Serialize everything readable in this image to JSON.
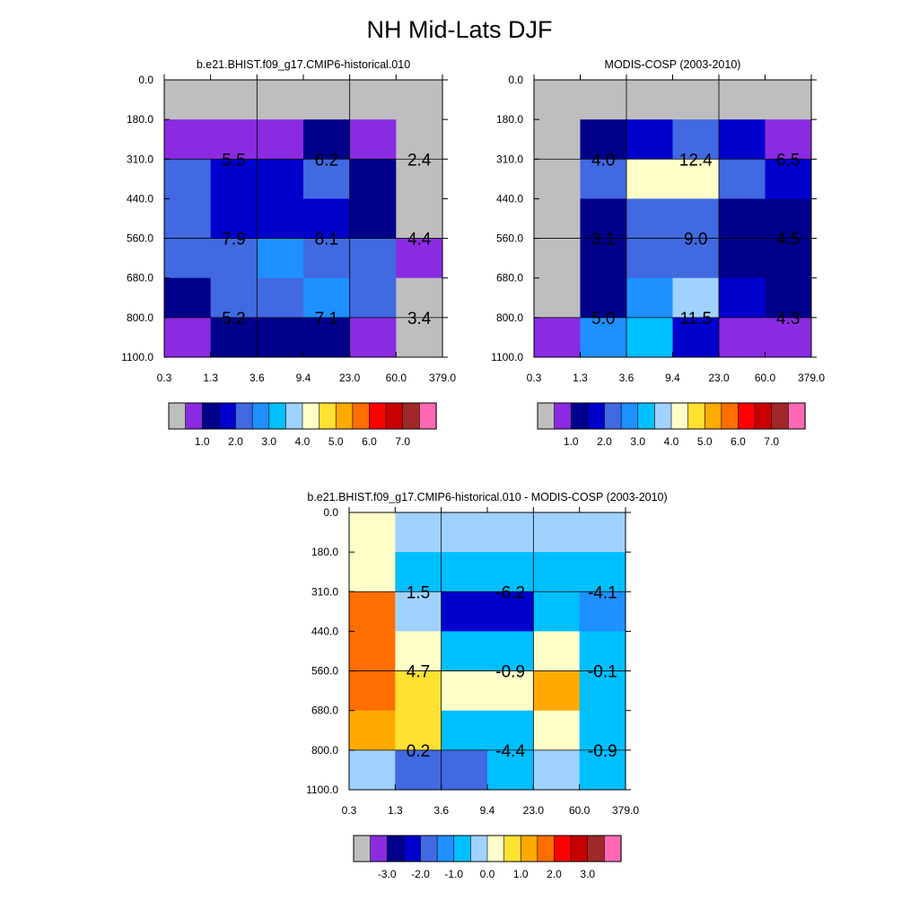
{
  "title": "NH Mid-Lats DJF",
  "colors": {
    "missing": "#bebebe",
    "palette": [
      "#bebebe",
      "#8a2be2",
      "#00008b",
      "#0000cd",
      "#4169e1",
      "#1e90ff",
      "#00bfff",
      "#a0d2ff",
      "#ffffc8",
      "#ffe132",
      "#ffaa00",
      "#ff6e00",
      "#ff0000",
      "#c80000",
      "#a02828",
      "#ff69b4"
    ]
  },
  "chart_data": [
    {
      "type": "heatmap",
      "name": "model",
      "title": "b.e21.BHIST.f09_g17.CMIP6-historical.010",
      "x_ticks": [
        "0.3",
        "1.3",
        "3.6",
        "9.4",
        "23.0",
        "60.0",
        "379.0"
      ],
      "y_ticks": [
        "0.0",
        "180.0",
        "310.0",
        "440.0",
        "560.0",
        "680.0",
        "800.0",
        "1100.0"
      ],
      "cells": [
        [
          0,
          0,
          0,
          0,
          0,
          0
        ],
        [
          1,
          1,
          1,
          2,
          1,
          0
        ],
        [
          4,
          3,
          3,
          4,
          2,
          0
        ],
        [
          4,
          3,
          3,
          3,
          2,
          0
        ],
        [
          4,
          4,
          5,
          4,
          4,
          1
        ],
        [
          2,
          4,
          4,
          5,
          4,
          0
        ],
        [
          1,
          2,
          2,
          2,
          1,
          0
        ]
      ],
      "values": [
        {
          "text": "5.5",
          "col": 0.5,
          "row": 1.5
        },
        {
          "text": "6.2",
          "col": 2.5,
          "row": 1.5
        },
        {
          "text": "2.4",
          "col": 4.5,
          "row": 1.5
        },
        {
          "text": "7.9",
          "col": 0.5,
          "row": 3.5
        },
        {
          "text": "8.1",
          "col": 2.5,
          "row": 3.5
        },
        {
          "text": "4.4",
          "col": 4.5,
          "row": 3.5
        },
        {
          "text": "5.2",
          "col": 0.5,
          "row": 5.5
        },
        {
          "text": "7.1",
          "col": 2.5,
          "row": 5.5
        },
        {
          "text": "3.4",
          "col": 4.5,
          "row": 5.5
        }
      ],
      "colorbar_labels": [
        "1.0",
        "2.0",
        "3.0",
        "4.0",
        "5.0",
        "6.0",
        "7.0"
      ]
    },
    {
      "type": "heatmap",
      "name": "obs",
      "title": "MODIS-COSP (2003-2010)",
      "x_ticks": [
        "0.3",
        "1.3",
        "3.6",
        "9.4",
        "23.0",
        "60.0",
        "379.0"
      ],
      "y_ticks": [
        "0.0",
        "180.0",
        "310.0",
        "440.0",
        "560.0",
        "680.0",
        "800.0",
        "1100.0"
      ],
      "cells": [
        [
          0,
          0,
          0,
          0,
          0,
          0
        ],
        [
          0,
          2,
          3,
          4,
          3,
          1
        ],
        [
          0,
          4,
          8,
          8,
          4,
          3
        ],
        [
          0,
          2,
          4,
          4,
          2,
          2
        ],
        [
          0,
          2,
          4,
          4,
          2,
          2
        ],
        [
          0,
          2,
          5,
          7,
          3,
          2
        ],
        [
          1,
          5,
          6,
          3,
          1,
          1
        ]
      ],
      "values": [
        {
          "text": "4.0",
          "col": 0.5,
          "row": 1.5
        },
        {
          "text": "12.4",
          "col": 2.5,
          "row": 1.5
        },
        {
          "text": "6.5",
          "col": 4.5,
          "row": 1.5
        },
        {
          "text": "3.1",
          "col": 0.5,
          "row": 3.5
        },
        {
          "text": "9.0",
          "col": 2.5,
          "row": 3.5
        },
        {
          "text": "4.5",
          "col": 4.5,
          "row": 3.5
        },
        {
          "text": "5.0",
          "col": 0.5,
          "row": 5.5
        },
        {
          "text": "11.5",
          "col": 2.5,
          "row": 5.5
        },
        {
          "text": "4.3",
          "col": 4.5,
          "row": 5.5
        }
      ],
      "colorbar_labels": [
        "1.0",
        "2.0",
        "3.0",
        "4.0",
        "5.0",
        "6.0",
        "7.0"
      ]
    },
    {
      "type": "heatmap",
      "name": "diff",
      "title": "b.e21.BHIST.f09_g17.CMIP6-historical.010 - MODIS-COSP (2003-2010)",
      "x_ticks": [
        "0.3",
        "1.3",
        "3.6",
        "9.4",
        "23.0",
        "60.0",
        "379.0"
      ],
      "y_ticks": [
        "0.0",
        "180.0",
        "310.0",
        "440.0",
        "560.0",
        "680.0",
        "800.0",
        "1100.0"
      ],
      "cells": [
        [
          8,
          7,
          7,
          7,
          7,
          7
        ],
        [
          8,
          6,
          6,
          6,
          6,
          6
        ],
        [
          11,
          7,
          3,
          3,
          6,
          5
        ],
        [
          11,
          8,
          6,
          6,
          8,
          6
        ],
        [
          11,
          9,
          8,
          8,
          10,
          6
        ],
        [
          10,
          9,
          6,
          6,
          8,
          6
        ],
        [
          7,
          4,
          4,
          6,
          7,
          6
        ]
      ],
      "values": [
        {
          "text": "1.5",
          "col": 0.5,
          "row": 1.5
        },
        {
          "text": "-6.2",
          "col": 2.5,
          "row": 1.5
        },
        {
          "text": "-4.1",
          "col": 4.5,
          "row": 1.5
        },
        {
          "text": "4.7",
          "col": 0.5,
          "row": 3.5
        },
        {
          "text": "-0.9",
          "col": 2.5,
          "row": 3.5
        },
        {
          "text": "-0.1",
          "col": 4.5,
          "row": 3.5
        },
        {
          "text": "0.2",
          "col": 0.5,
          "row": 5.5
        },
        {
          "text": "-4.4",
          "col": 2.5,
          "row": 5.5
        },
        {
          "text": "-0.9",
          "col": 4.5,
          "row": 5.5
        }
      ],
      "colorbar_labels": [
        "-3.0",
        "-2.0",
        "-1.0",
        "0.0",
        "1.0",
        "2.0",
        "3.0"
      ]
    }
  ]
}
